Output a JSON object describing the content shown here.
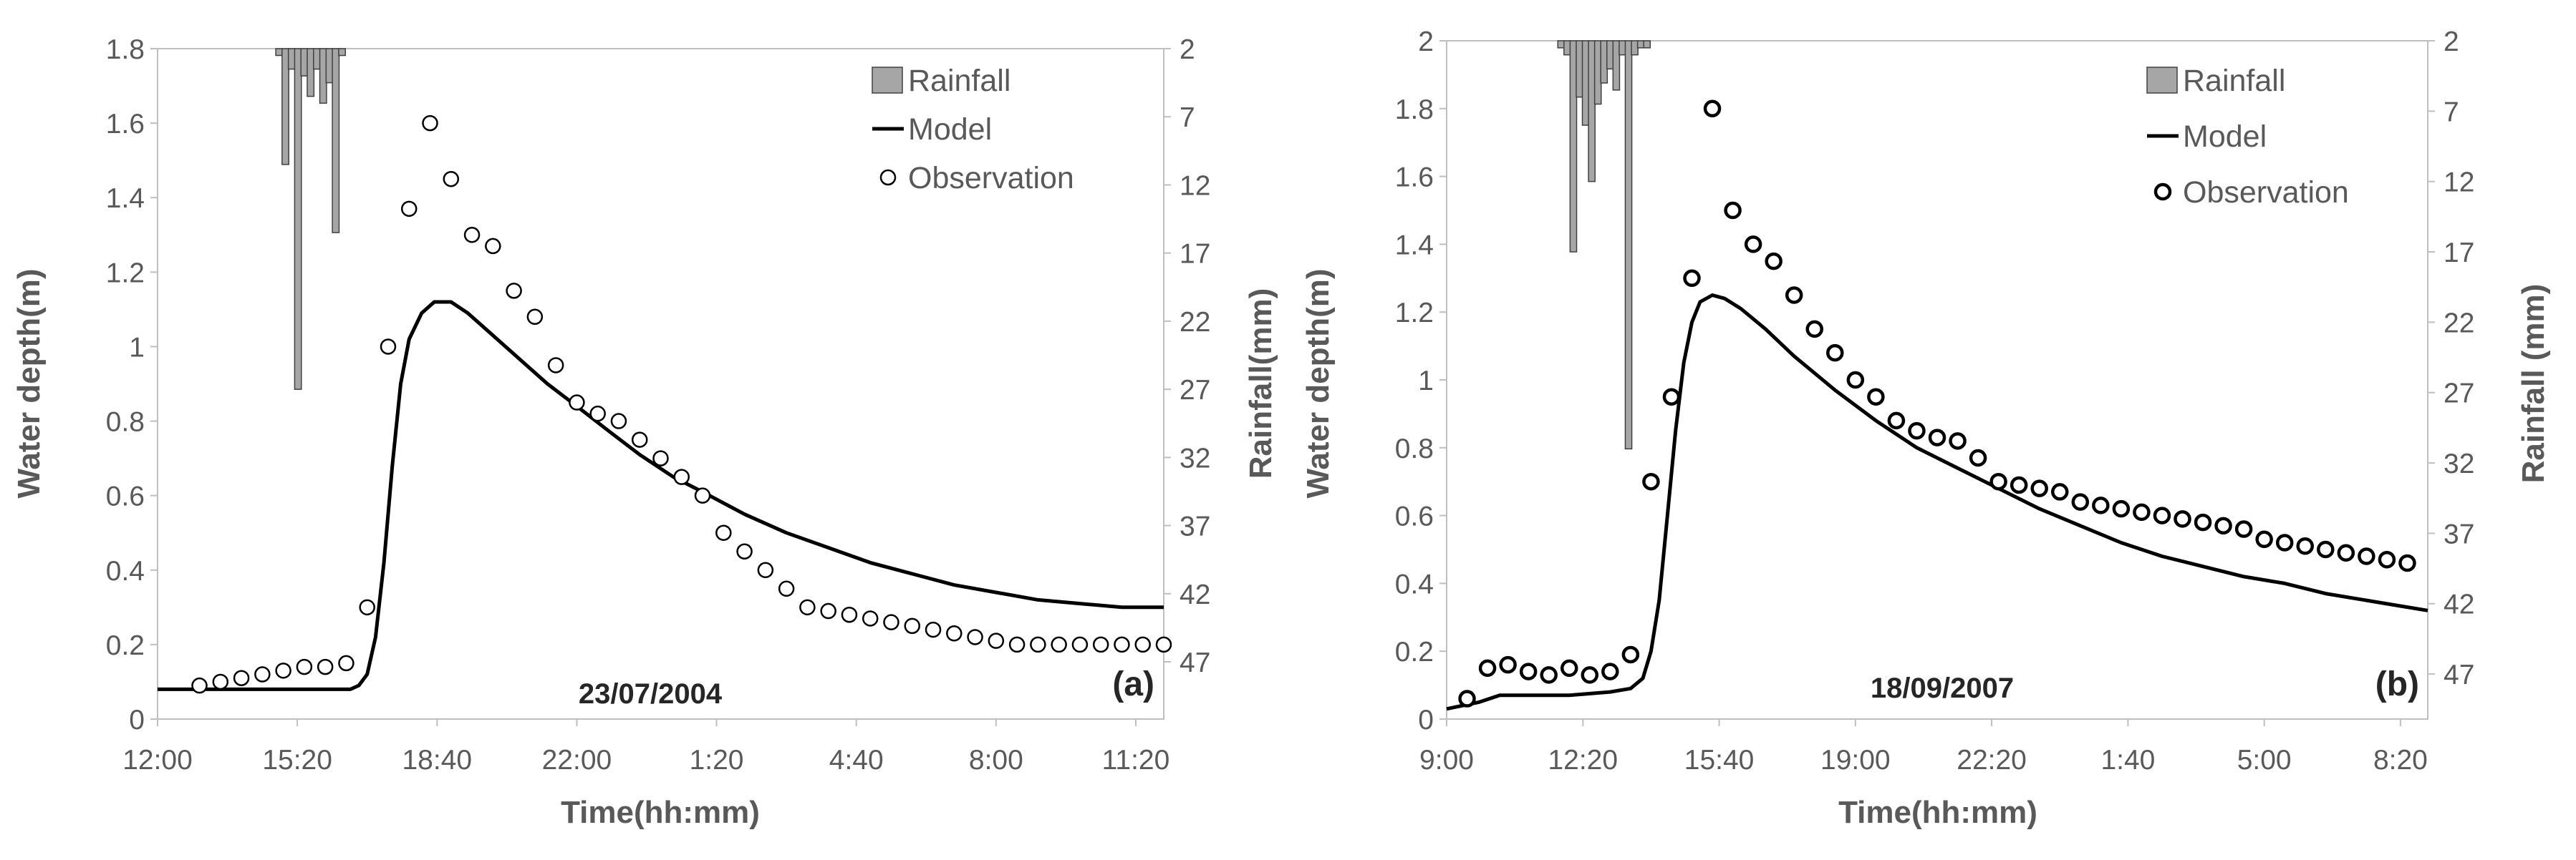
{
  "chart_data": [
    {
      "type": "line",
      "panel_label": "(a)",
      "date_label": "23/07/2004",
      "xlabel": "Time(hh:mm)",
      "ylabel_left": "Water depth(m)",
      "ylabel_right": "Rainfall(mm)",
      "x_range_hours": [
        12,
        36.0
      ],
      "x_ticks": [
        {
          "t": 12,
          "label": "12:00"
        },
        {
          "t": 15.333,
          "label": "15:20"
        },
        {
          "t": 18.667,
          "label": "18:40"
        },
        {
          "t": 22,
          "label": "22:00"
        },
        {
          "t": 25.333,
          "label": "1:20"
        },
        {
          "t": 28.667,
          "label": "4:40"
        },
        {
          "t": 32,
          "label": "8:00"
        },
        {
          "t": 35.333,
          "label": "11:20"
        }
      ],
      "ylim_left": [
        0,
        1.8
      ],
      "y_ticks_left": [
        {
          "v": 0,
          "label": "0"
        },
        {
          "v": 0.2,
          "label": "0.2"
        },
        {
          "v": 0.4,
          "label": "0.4"
        },
        {
          "v": 0.6,
          "label": "0.6"
        },
        {
          "v": 0.8,
          "label": "0.8"
        },
        {
          "v": 1.0,
          "label": "1"
        },
        {
          "v": 1.2,
          "label": "1.2"
        },
        {
          "v": 1.4,
          "label": "1.4"
        },
        {
          "v": 1.6,
          "label": "1.6"
        },
        {
          "v": 1.8,
          "label": "1.8"
        }
      ],
      "ylim_right_inverted": [
        2,
        51.2
      ],
      "y_ticks_right": [
        {
          "v": 2,
          "label": "2"
        },
        {
          "v": 7,
          "label": "7"
        },
        {
          "v": 12,
          "label": "12"
        },
        {
          "v": 17,
          "label": "17"
        },
        {
          "v": 22,
          "label": "22"
        },
        {
          "v": 27,
          "label": "27"
        },
        {
          "v": 32,
          "label": "32"
        },
        {
          "v": 37,
          "label": "37"
        },
        {
          "v": 42,
          "label": "42"
        },
        {
          "v": 47,
          "label": "47"
        }
      ],
      "legend": [
        {
          "kind": "rainfall",
          "label": "Rainfall"
        },
        {
          "kind": "model",
          "label": "Model"
        },
        {
          "kind": "observation",
          "label": "Observation"
        }
      ],
      "rainfall": {
        "bar_width_hours": 0.16,
        "t": [
          14.9,
          15.05,
          15.2,
          15.35,
          15.5,
          15.65,
          15.8,
          15.95,
          16.1,
          16.25,
          16.4
        ],
        "mm": [
          2.5,
          10.5,
          3.5,
          27.0,
          4.0,
          5.5,
          3.5,
          6.0,
          4.5,
          15.5,
          2.5
        ]
      },
      "model": {
        "t": [
          12,
          16.6,
          16.8,
          17.0,
          17.2,
          17.4,
          17.6,
          17.8,
          18.0,
          18.3,
          18.6,
          19.0,
          19.4,
          19.8,
          20.5,
          21.3,
          22.0,
          22.8,
          23.5,
          24.3,
          25.0,
          26.0,
          27.0,
          28.0,
          29.0,
          30.0,
          31.0,
          32.0,
          33.0,
          34.0,
          35.0,
          36.0
        ],
        "y": [
          0.08,
          0.08,
          0.09,
          0.12,
          0.22,
          0.42,
          0.68,
          0.9,
          1.02,
          1.09,
          1.12,
          1.12,
          1.09,
          1.05,
          0.98,
          0.9,
          0.84,
          0.77,
          0.71,
          0.65,
          0.61,
          0.55,
          0.5,
          0.46,
          0.42,
          0.39,
          0.36,
          0.34,
          0.32,
          0.31,
          0.3,
          0.3
        ]
      },
      "observation": {
        "t": [
          13.0,
          13.5,
          14.0,
          14.5,
          15.0,
          15.5,
          16.0,
          16.5,
          17.0,
          17.5,
          18.0,
          18.5,
          19.0,
          19.5,
          20.0,
          20.5,
          21.0,
          21.5,
          22.0,
          22.5,
          23.0,
          23.5,
          24.0,
          24.5,
          25.0,
          25.5,
          26.0,
          26.5,
          27.0,
          27.5,
          28.0,
          28.5,
          29.0,
          29.5,
          30.0,
          30.5,
          31.0,
          31.5,
          32.0,
          32.5,
          33.0,
          33.5,
          34.0,
          34.5,
          35.0,
          35.5,
          36.0
        ],
        "y": [
          0.09,
          0.1,
          0.11,
          0.12,
          0.13,
          0.14,
          0.14,
          0.15,
          0.3,
          1.0,
          1.37,
          1.6,
          1.45,
          1.3,
          1.27,
          1.15,
          1.08,
          0.95,
          0.85,
          0.82,
          0.8,
          0.75,
          0.7,
          0.65,
          0.6,
          0.5,
          0.45,
          0.4,
          0.35,
          0.3,
          0.29,
          0.28,
          0.27,
          0.26,
          0.25,
          0.24,
          0.23,
          0.22,
          0.21,
          0.2,
          0.2,
          0.2,
          0.2,
          0.2,
          0.2,
          0.2,
          0.2
        ]
      }
    },
    {
      "type": "line",
      "panel_label": "(b)",
      "date_label": "18/09/2007",
      "xlabel": "Time(hh:mm)",
      "ylabel_left": "Water depth(m)",
      "ylabel_right": "Rainfall (mm)",
      "x_range_hours": [
        9,
        33.0
      ],
      "x_ticks": [
        {
          "t": 9,
          "label": "9:00"
        },
        {
          "t": 12.333,
          "label": "12:20"
        },
        {
          "t": 15.667,
          "label": "15:40"
        },
        {
          "t": 19,
          "label": "19:00"
        },
        {
          "t": 22.333,
          "label": "22:20"
        },
        {
          "t": 25.667,
          "label": "1:40"
        },
        {
          "t": 29,
          "label": "5:00"
        },
        {
          "t": 32.333,
          "label": "8:20"
        }
      ],
      "ylim_left": [
        0,
        2.0
      ],
      "y_ticks_left": [
        {
          "v": 0,
          "label": "0"
        },
        {
          "v": 0.2,
          "label": "0.2"
        },
        {
          "v": 0.4,
          "label": "0.4"
        },
        {
          "v": 0.6,
          "label": "0.6"
        },
        {
          "v": 0.8,
          "label": "0.8"
        },
        {
          "v": 1.0,
          "label": "1"
        },
        {
          "v": 1.2,
          "label": "1.2"
        },
        {
          "v": 1.4,
          "label": "1.4"
        },
        {
          "v": 1.6,
          "label": "1.6"
        },
        {
          "v": 1.8,
          "label": "1.8"
        },
        {
          "v": 2.0,
          "label": "2"
        }
      ],
      "ylim_right_inverted": [
        2,
        50.2
      ],
      "y_ticks_right": [
        {
          "v": 2,
          "label": "2"
        },
        {
          "v": 7,
          "label": "7"
        },
        {
          "v": 12,
          "label": "12"
        },
        {
          "v": 17,
          "label": "17"
        },
        {
          "v": 22,
          "label": "22"
        },
        {
          "v": 27,
          "label": "27"
        },
        {
          "v": 32,
          "label": "32"
        },
        {
          "v": 37,
          "label": "37"
        },
        {
          "v": 42,
          "label": "42"
        },
        {
          "v": 47,
          "label": "47"
        }
      ],
      "legend": [
        {
          "kind": "rainfall",
          "label": "Rainfall"
        },
        {
          "kind": "model",
          "label": "Model"
        },
        {
          "kind": "observation",
          "label": "Observation"
        }
      ],
      "rainfall": {
        "bar_width_hours": 0.16,
        "t": [
          11.8,
          11.95,
          12.1,
          12.25,
          12.4,
          12.55,
          12.7,
          12.85,
          13.0,
          13.15,
          13.3,
          13.45,
          13.6,
          13.75,
          13.9
        ],
        "mm": [
          2.5,
          3.0,
          17.0,
          6.0,
          8.0,
          12.0,
          6.5,
          5.0,
          4.0,
          5.5,
          3.0,
          31.0,
          3.0,
          2.5,
          2.5
        ]
      },
      "model": {
        "t": [
          9,
          9.8,
          10.3,
          12.0,
          13.0,
          13.5,
          13.8,
          14.0,
          14.2,
          14.4,
          14.6,
          14.8,
          15.0,
          15.2,
          15.5,
          15.8,
          16.2,
          16.8,
          17.5,
          18.5,
          19.5,
          20.5,
          21.5,
          22.5,
          23.5,
          24.5,
          25.5,
          26.5,
          27.5,
          28.5,
          29.5,
          30.5,
          31.5,
          32.5,
          33.0
        ],
        "y": [
          0.03,
          0.05,
          0.07,
          0.07,
          0.08,
          0.09,
          0.12,
          0.2,
          0.35,
          0.6,
          0.85,
          1.05,
          1.17,
          1.23,
          1.25,
          1.24,
          1.21,
          1.15,
          1.07,
          0.97,
          0.88,
          0.8,
          0.74,
          0.68,
          0.62,
          0.57,
          0.52,
          0.48,
          0.45,
          0.42,
          0.4,
          0.37,
          0.35,
          0.33,
          0.32
        ]
      },
      "observation": {
        "t": [
          9.5,
          10.0,
          10.5,
          11.0,
          11.5,
          12.0,
          12.5,
          13.0,
          13.5,
          14.0,
          14.5,
          15.0,
          15.5,
          16.0,
          16.5,
          17.0,
          17.5,
          18.0,
          18.5,
          19.0,
          19.5,
          20.0,
          20.5,
          21.0,
          21.5,
          22.0,
          22.5,
          23.0,
          23.5,
          24.0,
          24.5,
          25.0,
          25.5,
          26.0,
          26.5,
          27.0,
          27.5,
          28.0,
          28.5,
          29.0,
          29.5,
          30.0,
          30.5,
          31.0,
          31.5,
          32.0,
          32.5
        ],
        "y": [
          0.06,
          0.15,
          0.16,
          0.14,
          0.13,
          0.15,
          0.13,
          0.14,
          0.19,
          0.7,
          0.95,
          1.3,
          1.8,
          1.5,
          1.4,
          1.35,
          1.25,
          1.15,
          1.08,
          1.0,
          0.95,
          0.88,
          0.85,
          0.83,
          0.82,
          0.77,
          0.7,
          0.69,
          0.68,
          0.67,
          0.64,
          0.63,
          0.62,
          0.61,
          0.6,
          0.59,
          0.58,
          0.57,
          0.56,
          0.53,
          0.52,
          0.51,
          0.5,
          0.49,
          0.48,
          0.47,
          0.46
        ]
      }
    }
  ]
}
